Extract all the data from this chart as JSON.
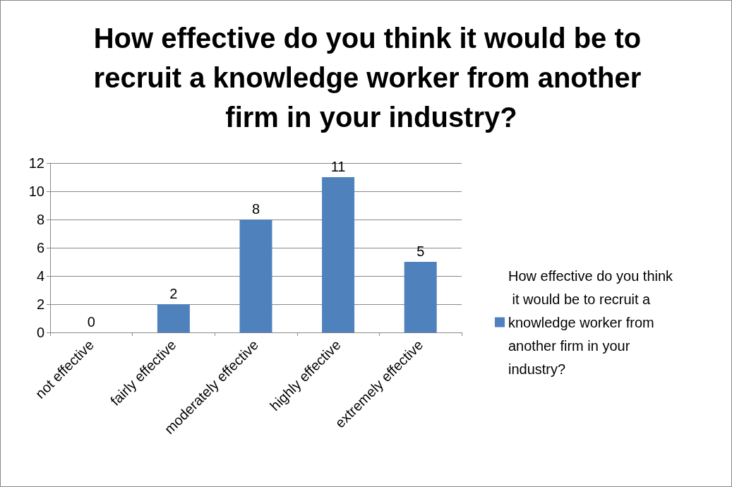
{
  "chart_data": {
    "type": "bar",
    "title": "How effective do you think it would be to recruit a knowledge worker from another firm in your industry?",
    "categories": [
      "not effective",
      "fairly effective",
      "moderately effective",
      "highly effective",
      "extremely effective"
    ],
    "series": [
      {
        "name": "How effective do you think it would be to recruit a knowledge worker from another firm in your industry?",
        "color": "#4f81bd",
        "values": [
          0,
          2,
          8,
          11,
          5
        ]
      }
    ],
    "ylim": [
      0,
      12
    ],
    "yticks": [
      0,
      2,
      4,
      6,
      8,
      10,
      12
    ],
    "grid": "y",
    "legend": "right",
    "data_labels": true
  }
}
